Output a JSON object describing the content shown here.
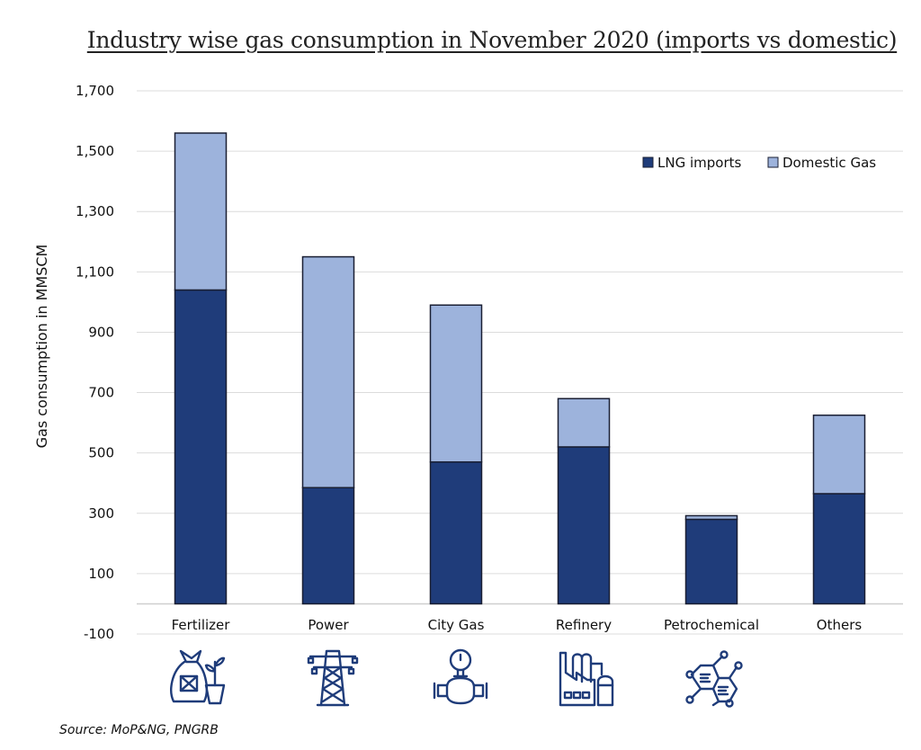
{
  "chart_data": {
    "type": "bar",
    "stacked": true,
    "title": "Industry wise gas consumption in November 2020 (imports vs domestic)",
    "xlabel": "",
    "ylabel": "Gas consumption in MMSCM",
    "ylim": [
      -100,
      1700
    ],
    "yticks": [
      -100,
      100,
      300,
      500,
      700,
      900,
      1100,
      1300,
      1500,
      1700
    ],
    "ytick_labels": [
      "-100",
      "100",
      "300",
      "500",
      "700",
      "900",
      "1,100",
      "1,300",
      "1,500",
      "1,700"
    ],
    "grid": true,
    "legend_position": "top-right",
    "categories": [
      "Fertilizer",
      "Power",
      "City Gas",
      "Refinery",
      "Petrochemical",
      "Others"
    ],
    "series": [
      {
        "name": "LNG imports",
        "color": "#1f3c7a",
        "values": [
          1040,
          385,
          470,
          520,
          280,
          365
        ]
      },
      {
        "name": "Domestic Gas",
        "color": "#9db3dc",
        "values": [
          520,
          765,
          520,
          160,
          12,
          260
        ]
      }
    ],
    "category_icons": [
      "fertilizer-bag-plant-icon",
      "power-tower-icon",
      "gas-meter-icon",
      "refinery-factory-icon",
      "molecule-icon",
      "none"
    ]
  },
  "source": "Source: MoP&NG, PNGRB",
  "colors": {
    "icon": "#1f3c7a",
    "grid": "#dcdcdc",
    "bar_outline": "#1a1f33"
  }
}
